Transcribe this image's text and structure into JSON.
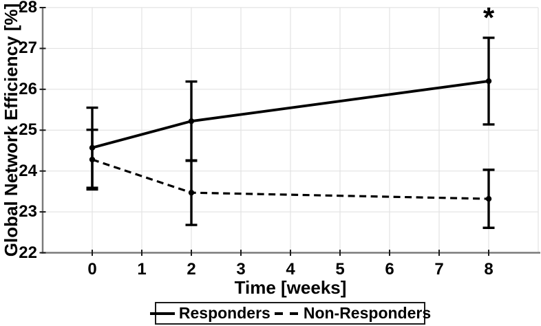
{
  "chart_data": {
    "type": "line",
    "title": "",
    "xlabel": "Time [weeks]",
    "ylabel": "Global Network Efficiency [%]",
    "xlim": [
      -1,
      9
    ],
    "ylim": [
      22,
      28
    ],
    "xticks": [
      0,
      1,
      2,
      3,
      4,
      5,
      6,
      7,
      8
    ],
    "yticks": [
      22,
      23,
      24,
      25,
      26,
      27,
      28
    ],
    "grid": true,
    "legend_position": "below-axis",
    "series": [
      {
        "name": "Responders",
        "style": "solid",
        "marker": "point",
        "x": [
          0,
          2,
          8
        ],
        "y": [
          24.57,
          25.22,
          26.2
        ],
        "yerr": [
          0.98,
          0.97,
          1.06
        ]
      },
      {
        "name": "Non-Responders",
        "style": "dashed",
        "marker": "point",
        "x": [
          0,
          2,
          8
        ],
        "y": [
          24.28,
          23.47,
          23.32
        ],
        "yerr": [
          0.73,
          0.79,
          0.71
        ]
      }
    ],
    "annotations": [
      {
        "text": "*",
        "x": 8,
        "y": 27.7
      }
    ]
  },
  "colors": {
    "line": "#000000",
    "grid": "#e2e2e2",
    "spine": "#7a7a7a",
    "tick": "#1a1a1a",
    "background": "#ffffff"
  }
}
